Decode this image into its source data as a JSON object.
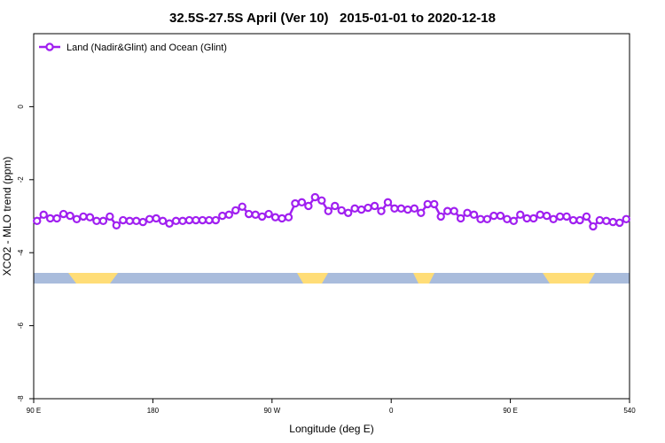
{
  "chart_data": {
    "type": "line",
    "title": "32.5S-27.5S April (Ver 10)   2015-01-01 to 2020-12-18",
    "x_label": "Longitude (deg E)",
    "y_label": "XCO2 - MLO trend (ppm)",
    "x": [
      92.5,
      97.5,
      102.5,
      107.5,
      112.5,
      117.5,
      122.5,
      127.5,
      132.5,
      137.5,
      142.5,
      147.5,
      152.5,
      157.5,
      162.5,
      167.5,
      172.5,
      177.5,
      182.5,
      187.5,
      192.5,
      197.5,
      202.5,
      207.5,
      212.5,
      217.5,
      222.5,
      227.5,
      232.5,
      237.5,
      242.5,
      247.5,
      252.5,
      257.5,
      262.5,
      267.5,
      272.5,
      277.5,
      282.5,
      287.5,
      292.5,
      297.5,
      302.5,
      307.5,
      312.5,
      317.5,
      322.5,
      327.5,
      332.5,
      337.5,
      342.5,
      347.5,
      352.5,
      357.5,
      362.5,
      367.5,
      372.5,
      377.5,
      382.5,
      387.5,
      392.5,
      397.5,
      402.5,
      407.5,
      412.5,
      417.5,
      422.5,
      427.5,
      432.5,
      437.5,
      442.5,
      447.5,
      452.5,
      457.5,
      462.5,
      467.5,
      472.5,
      477.5,
      482.5,
      487.5,
      492.5,
      497.5,
      502.5,
      507.5,
      512.5,
      517.5,
      522.5,
      527.5,
      532.5,
      537.5
    ],
    "series": [
      {
        "name": "Land (Nadir&Glint) and Ocean (Glint)",
        "color": "#a020f0",
        "values": [
          -3.13,
          -2.96,
          -3.06,
          -3.06,
          -2.94,
          -2.99,
          -3.08,
          -3.01,
          -3.03,
          -3.13,
          -3.13,
          -3.01,
          -3.25,
          -3.11,
          -3.13,
          -3.13,
          -3.16,
          -3.08,
          -3.06,
          -3.13,
          -3.2,
          -3.13,
          -3.13,
          -3.11,
          -3.11,
          -3.11,
          -3.11,
          -3.11,
          -2.99,
          -2.96,
          -2.84,
          -2.74,
          -2.94,
          -2.96,
          -3.01,
          -2.94,
          -3.03,
          -3.06,
          -3.03,
          -2.65,
          -2.62,
          -2.72,
          -2.48,
          -2.57,
          -2.86,
          -2.72,
          -2.84,
          -2.91,
          -2.79,
          -2.82,
          -2.77,
          -2.72,
          -2.86,
          -2.62,
          -2.79,
          -2.79,
          -2.82,
          -2.79,
          -2.91,
          -2.67,
          -2.67,
          -3.01,
          -2.86,
          -2.86,
          -3.06,
          -2.91,
          -2.96,
          -3.08,
          -3.08,
          -2.99,
          -2.99,
          -3.08,
          -3.13,
          -2.96,
          -3.06,
          -3.06,
          -2.96,
          -2.99,
          -3.08,
          -3.01,
          -3.01,
          -3.11,
          -3.11,
          -3.01,
          -3.28,
          -3.11,
          -3.13,
          -3.16,
          -3.18,
          -3.08
        ]
      }
    ],
    "xlim": [
      90,
      540
    ],
    "xticks": [
      {
        "value": 90,
        "label": "90 E"
      },
      180,
      {
        "value": 270,
        "label": "90 W"
      },
      {
        "value": 360,
        "label": "0"
      },
      {
        "value": 450,
        "label": "90 E"
      },
      540
    ],
    "ylim": [
      -8,
      2
    ],
    "yticks": [
      0,
      -2,
      -4,
      -6,
      -8
    ],
    "legend": "top-left"
  }
}
